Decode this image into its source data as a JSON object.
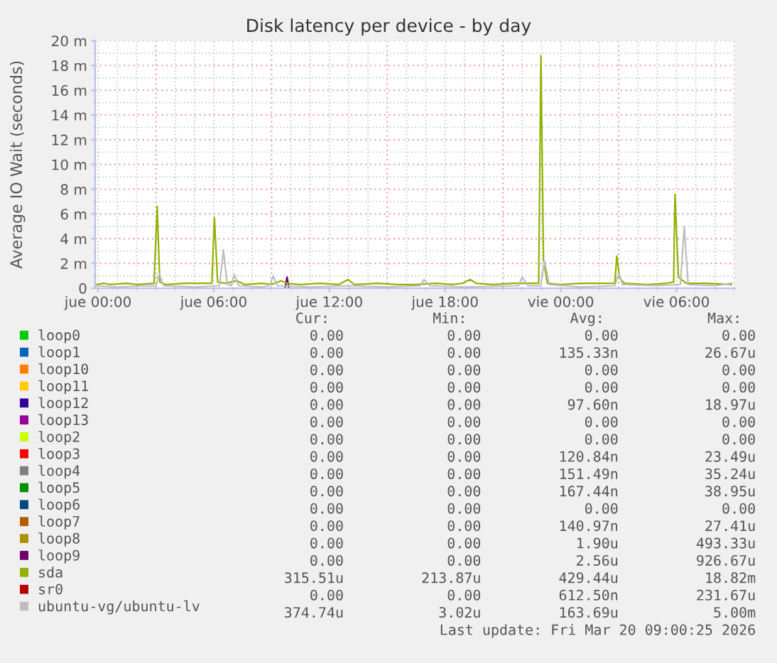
{
  "chart_data": {
    "type": "line",
    "title": "Disk latency per device - by day",
    "ylabel": "Average IO Wait (seconds)",
    "xlim": [
      "2026-03-18T23:51",
      "2026-03-20T09:00"
    ],
    "xticks": [
      {
        "value": "2026-03-19T00:00",
        "label": "jue 00:00"
      },
      {
        "value": "2026-03-19T01:00",
        "label": null
      },
      {
        "value": "2026-03-19T02:00",
        "label": null
      },
      {
        "value": "2026-03-19T03:00",
        "label": null
      },
      {
        "value": "2026-03-19T04:00",
        "label": null
      },
      {
        "value": "2026-03-19T05:00",
        "label": null
      },
      {
        "value": "2026-03-19T06:00",
        "label": "jue 06:00"
      },
      {
        "value": "2026-03-19T07:00",
        "label": null
      },
      {
        "value": "2026-03-19T08:00",
        "label": null
      },
      {
        "value": "2026-03-19T09:00",
        "label": null
      },
      {
        "value": "2026-03-19T10:00",
        "label": null
      },
      {
        "value": "2026-03-19T11:00",
        "label": null
      },
      {
        "value": "2026-03-19T12:00",
        "label": "jue 12:00"
      },
      {
        "value": "2026-03-19T13:00",
        "label": null
      },
      {
        "value": "2026-03-19T14:00",
        "label": null
      },
      {
        "value": "2026-03-19T15:00",
        "label": null
      },
      {
        "value": "2026-03-19T16:00",
        "label": null
      },
      {
        "value": "2026-03-19T17:00",
        "label": null
      },
      {
        "value": "2026-03-19T18:00",
        "label": "jue 18:00"
      },
      {
        "value": "2026-03-19T19:00",
        "label": null
      },
      {
        "value": "2026-03-19T20:00",
        "label": null
      },
      {
        "value": "2026-03-19T21:00",
        "label": null
      },
      {
        "value": "2026-03-19T22:00",
        "label": null
      },
      {
        "value": "2026-03-19T23:00",
        "label": null
      },
      {
        "value": "2026-03-20T00:00",
        "label": "vie 00:00"
      },
      {
        "value": "2026-03-20T01:00",
        "label": null
      },
      {
        "value": "2026-03-20T02:00",
        "label": null
      },
      {
        "value": "2026-03-20T03:00",
        "label": null
      },
      {
        "value": "2026-03-20T04:00",
        "label": null
      },
      {
        "value": "2026-03-20T05:00",
        "label": null
      },
      {
        "value": "2026-03-20T06:00",
        "label": "vie 06:00"
      },
      {
        "value": "2026-03-20T07:00",
        "label": null
      },
      {
        "value": "2026-03-20T08:00",
        "label": null
      },
      {
        "value": "2026-03-20T09:00",
        "label": null
      }
    ],
    "ylim": [
      0,
      20
    ],
    "yticks": [
      0,
      {
        "value": 1,
        "label": null
      },
      {
        "value": 2,
        "label": "2 m"
      },
      {
        "value": 3,
        "label": null
      },
      {
        "value": 4,
        "label": "4 m"
      },
      {
        "value": 5,
        "label": null
      },
      {
        "value": 6,
        "label": "6 m"
      },
      {
        "value": 7,
        "label": null
      },
      {
        "value": 8,
        "label": "8 m"
      },
      {
        "value": 9,
        "label": null
      },
      {
        "value": 10,
        "label": "10 m"
      },
      {
        "value": 11,
        "label": null
      },
      {
        "value": 12,
        "label": "12 m"
      },
      {
        "value": 13,
        "label": null
      },
      {
        "value": 14,
        "label": "14 m"
      },
      {
        "value": 15,
        "label": null
      },
      {
        "value": 16,
        "label": "16 m"
      },
      {
        "value": 17,
        "label": null
      },
      {
        "value": 18,
        "label": "18 m"
      },
      {
        "value": 19,
        "label": null
      },
      {
        "value": 20,
        "label": "20 m"
      }
    ],
    "grid": true,
    "legend": "bottom",
    "series": [
      {
        "name": "loop0",
        "color": "#00cc00"
      },
      {
        "name": "loop1",
        "color": "#0066b3"
      },
      {
        "name": "loop10",
        "color": "#ff8000"
      },
      {
        "name": "loop11",
        "color": "#ffcc00"
      },
      {
        "name": "loop12",
        "color": "#330099"
      },
      {
        "name": "loop13",
        "color": "#990099"
      },
      {
        "name": "loop2",
        "color": "#ccff00"
      },
      {
        "name": "loop3",
        "color": "#ff0000"
      },
      {
        "name": "loop4",
        "color": "#808080"
      },
      {
        "name": "loop5",
        "color": "#008f00"
      },
      {
        "name": "loop6",
        "color": "#00487d"
      },
      {
        "name": "loop7",
        "color": "#b35a00"
      },
      {
        "name": "loop8",
        "color": "#b38f00"
      },
      {
        "name": "loop9",
        "color": "#6b006b",
        "x": [
          "2026-03-19T09:42",
          "2026-03-19T09:48",
          "2026-03-19T09:54"
        ],
        "values": [
          0,
          0.9,
          0
        ]
      },
      {
        "name": "sda",
        "color": "#8fb300",
        "x": [
          "2026-03-18T23:54",
          "2026-03-19T00:18",
          "2026-03-19T00:36",
          "2026-03-19T01:30",
          "2026-03-19T02:00",
          "2026-03-19T02:54",
          "2026-03-19T03:04",
          "2026-03-19T03:12",
          "2026-03-19T03:30",
          "2026-03-19T04:30",
          "2026-03-19T05:00",
          "2026-03-19T05:54",
          "2026-03-19T06:02",
          "2026-03-19T06:12",
          "2026-03-19T06:36",
          "2026-03-19T07:12",
          "2026-03-19T07:36",
          "2026-03-19T08:30",
          "2026-03-19T09:00",
          "2026-03-19T09:30",
          "2026-03-19T09:48",
          "2026-03-19T10:30",
          "2026-03-19T11:30",
          "2026-03-19T12:30",
          "2026-03-19T12:58",
          "2026-03-19T13:18",
          "2026-03-19T14:30",
          "2026-03-19T15:30",
          "2026-03-19T16:30",
          "2026-03-19T17:30",
          "2026-03-19T18:24",
          "2026-03-19T18:54",
          "2026-03-19T19:18",
          "2026-03-19T19:36",
          "2026-03-19T20:30",
          "2026-03-19T21:30",
          "2026-03-19T22:30",
          "2026-03-19T22:51",
          "2026-03-19T22:58",
          "2026-03-19T23:06",
          "2026-03-19T23:18",
          "2026-03-20T00:00",
          "2026-03-20T01:00",
          "2026-03-20T02:00",
          "2026-03-20T02:48",
          "2026-03-20T02:54",
          "2026-03-20T03:03",
          "2026-03-20T03:18",
          "2026-03-20T04:30",
          "2026-03-20T05:30",
          "2026-03-20T05:51",
          "2026-03-20T05:55",
          "2026-03-20T06:06",
          "2026-03-20T06:30",
          "2026-03-20T07:30",
          "2026-03-20T08:51"
        ],
        "values": [
          0.3,
          0.4,
          0.3,
          0.4,
          0.3,
          0.4,
          6.6,
          0.5,
          0.3,
          0.4,
          0.4,
          0.4,
          5.7,
          0.5,
          0.4,
          0.6,
          0.3,
          0.4,
          0.3,
          0.6,
          0.4,
          0.3,
          0.4,
          0.3,
          0.7,
          0.3,
          0.4,
          0.3,
          0.3,
          0.4,
          0.3,
          0.4,
          0.7,
          0.4,
          0.3,
          0.4,
          0.4,
          0.4,
          18.8,
          2.3,
          0.4,
          0.3,
          0.4,
          0.4,
          0.4,
          2.6,
          0.8,
          0.4,
          0.3,
          0.4,
          0.5,
          7.6,
          0.9,
          0.4,
          0.4,
          0.3
        ]
      },
      {
        "name": "sr0",
        "color": "#b30000"
      },
      {
        "name": "ubuntu-vg/ubuntu-lv",
        "color": "#bebebe",
        "x": [
          "2026-03-18T23:54",
          "2026-03-19T01:00",
          "2026-03-19T02:30",
          "2026-03-19T03:00",
          "2026-03-19T03:10",
          "2026-03-19T03:24",
          "2026-03-19T05:00",
          "2026-03-19T06:18",
          "2026-03-19T06:30",
          "2026-03-19T06:42",
          "2026-03-19T06:54",
          "2026-03-19T07:04",
          "2026-03-19T07:18",
          "2026-03-19T08:30",
          "2026-03-19T08:54",
          "2026-03-19T09:05",
          "2026-03-19T09:18",
          "2026-03-19T11:00",
          "2026-03-19T13:00",
          "2026-03-19T15:00",
          "2026-03-19T16:42",
          "2026-03-19T16:54",
          "2026-03-19T17:12",
          "2026-03-19T19:00",
          "2026-03-19T21:48",
          "2026-03-19T22:00",
          "2026-03-19T22:18",
          "2026-03-19T22:57",
          "2026-03-19T23:09",
          "2026-03-19T23:24",
          "2026-03-20T01:00",
          "2026-03-20T02:48",
          "2026-03-20T03:00",
          "2026-03-20T03:12",
          "2026-03-20T05:00",
          "2026-03-20T06:12",
          "2026-03-20T06:24",
          "2026-03-20T06:36",
          "2026-03-20T08:00",
          "2026-03-20T08:51"
        ],
        "values": [
          0.2,
          0.1,
          0.2,
          0.2,
          1.2,
          0.2,
          0.1,
          0.2,
          3.1,
          0.3,
          0.2,
          1.1,
          0.2,
          0.1,
          0.2,
          1.0,
          0.2,
          0.1,
          0.2,
          0.1,
          0.2,
          0.7,
          0.2,
          0.1,
          0.2,
          0.9,
          0.2,
          0.2,
          2.2,
          0.3,
          0.1,
          0.2,
          1.2,
          0.3,
          0.2,
          0.3,
          5.0,
          0.3,
          0.2,
          0.4
        ]
      }
    ],
    "annotations": [
      "Cur:",
      "Min:",
      "Avg:",
      "Max:",
      "0.00",
      "0.00",
      "0.00",
      "0.00",
      "0.00",
      "0.00",
      "135.33n",
      "26.67u",
      "0.00",
      "0.00",
      "0.00",
      "0.00",
      "0.00",
      "0.00",
      "0.00",
      "0.00",
      "0.00",
      "0.00",
      "97.60n",
      "18.97u",
      "0.00",
      "0.00",
      "0.00",
      "0.00",
      "0.00",
      "0.00",
      "0.00",
      "0.00",
      "0.00",
      "0.00",
      "120.84n",
      "23.49u",
      "0.00",
      "0.00",
      "151.49n",
      "35.24u",
      "0.00",
      "0.00",
      "167.44n",
      "38.95u",
      "0.00",
      "0.00",
      "0.00",
      "0.00",
      "0.00",
      "0.00",
      "140.97n",
      "27.41u",
      "0.00",
      "0.00",
      "1.90u",
      "493.33u",
      "0.00",
      "0.00",
      "2.56u",
      "926.67u",
      "315.51u",
      "213.87u",
      "429.44u",
      "18.82m",
      "0.00",
      "0.00",
      "612.50n",
      "231.67u",
      "374.74u",
      "3.02u",
      "163.69u",
      "5.00m",
      "Last update: Fri Mar 20 09:00:25 2026"
    ]
  }
}
